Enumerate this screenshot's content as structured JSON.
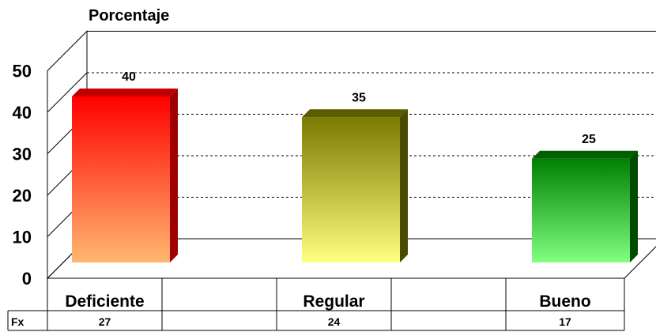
{
  "chart_data": {
    "type": "bar",
    "title": "Porcentaje",
    "categories": [
      "Deficiente",
      "Regular",
      "Bueno"
    ],
    "values": [
      40,
      35,
      25
    ],
    "data_labels": [
      "40",
      "35",
      "25"
    ],
    "ylim": [
      0,
      50
    ],
    "yticks": [
      0,
      10,
      20,
      30,
      40,
      50
    ],
    "grid": "dashed horizontal",
    "style": "3d",
    "colors": [
      {
        "top": "#ff0000",
        "bottom": "#ffb870",
        "side": "#a00000",
        "cap": "#c00000"
      },
      {
        "top": "#7a7a00",
        "bottom": "#ffff80",
        "side": "#4a4a00",
        "cap": "#5c5c00"
      },
      {
        "top": "#008000",
        "bottom": "#80ff80",
        "side": "#004a00",
        "cap": "#006000"
      }
    ],
    "table": {
      "row_label": "Fx",
      "values": [
        "27",
        "24",
        "17"
      ]
    }
  }
}
